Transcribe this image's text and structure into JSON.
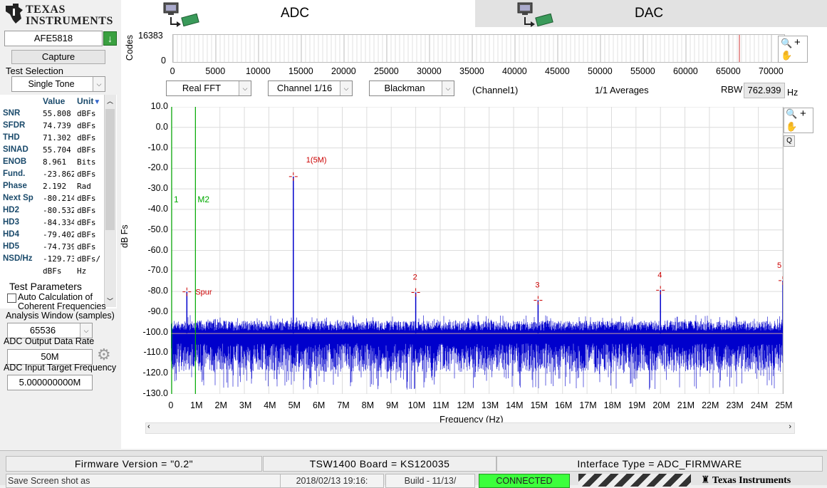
{
  "brand": {
    "name": "Texas Instruments",
    "logo_line1": "TEXAS",
    "logo_line2": "INSTRUMENTS"
  },
  "tabs": [
    {
      "label": "ADC",
      "active": true
    },
    {
      "label": "DAC",
      "active": false
    }
  ],
  "left": {
    "device": "AFE5818",
    "capture_label": "Capture",
    "test_selection_label": "Test Selection",
    "test_selection_value": "Single Tone",
    "metrics_headers": {
      "name": "",
      "value": "Value",
      "unit": "Unit"
    },
    "metrics": [
      {
        "name": "SNR",
        "value": "55.808",
        "unit": "dBFs"
      },
      {
        "name": "SFDR",
        "value": "74.739",
        "unit": "dBFs"
      },
      {
        "name": "THD",
        "value": "71.302",
        "unit": "dBFs"
      },
      {
        "name": "SINAD",
        "value": "55.704",
        "unit": "dBFs"
      },
      {
        "name": "ENOB",
        "value": "8.961",
        "unit": "Bits"
      },
      {
        "name": "Fund.",
        "value": "-23.862",
        "unit": "dBFs"
      },
      {
        "name": "Phase",
        "value": "2.192",
        "unit": "Rad"
      },
      {
        "name": "Next Sp",
        "value": "-80.214",
        "unit": "dBFs"
      },
      {
        "name": "HD2",
        "value": "-80.532",
        "unit": "dBFs"
      },
      {
        "name": "HD3",
        "value": "-84.334",
        "unit": "dBFs"
      },
      {
        "name": "HD4",
        "value": "-79.402",
        "unit": "dBFs"
      },
      {
        "name": "HD5",
        "value": "-74.739",
        "unit": "dBFs"
      },
      {
        "name": "NSD/Hz",
        "value": "-129.73",
        "unit": "dBFs/"
      },
      {
        "name": "",
        "value": "dBFs",
        "unit": "Hz"
      }
    ],
    "test_params_title": "Test Parameters",
    "auto_calc_line1": "Auto Calculation of",
    "auto_calc_line2": "Coherent Frequencies",
    "auto_calc_checked": false,
    "analysis_window_label": "Analysis Window (samples)",
    "analysis_window_value": "65536",
    "output_rate_label": "ADC Output Data Rate",
    "output_rate_value": "50M",
    "input_freq_label": "ADC Input Target Frequency",
    "input_freq_value": "5.000000000M"
  },
  "codes_plot": {
    "ylabel": "Codes",
    "y_ticks": [
      "16383",
      "0"
    ],
    "x_ticks": [
      "0",
      "5000",
      "10000",
      "15000",
      "20000",
      "25000",
      "30000",
      "35000",
      "40000",
      "45000",
      "50000",
      "55000",
      "60000",
      "65000",
      "70000"
    ]
  },
  "controls": {
    "fft_type": "Real FFT",
    "channel": "Channel 1/16",
    "window": "Blackman",
    "channel_label": "(Channel1)",
    "averages": "1/1  Averages",
    "rbw_label": "RBW",
    "rbw_value": "762.939",
    "rbw_unit": "Hz"
  },
  "chart_data": {
    "type": "line",
    "title": "",
    "xlabel": "Frequency (Hz)",
    "ylabel": "dB Fs",
    "xlim": [
      0,
      25000000
    ],
    "ylim": [
      -130,
      10
    ],
    "x_ticks": [
      "0",
      "1M",
      "2M",
      "3M",
      "4M",
      "5M",
      "6M",
      "7M",
      "8M",
      "9M",
      "10M",
      "11M",
      "12M",
      "13M",
      "14M",
      "15M",
      "16M",
      "17M",
      "18M",
      "19M",
      "20M",
      "21M",
      "22M",
      "23M",
      "24M",
      "25M"
    ],
    "y_ticks": [
      "10.0",
      "0.0",
      "-10.0",
      "-20.0",
      "-30.0",
      "-40.0",
      "-50.0",
      "-60.0",
      "-70.0",
      "-80.0",
      "-90.0",
      "-100.0",
      "-110.0",
      "-120.0",
      "-130.0"
    ],
    "grid": true,
    "noise_floor_db": -100.5,
    "series_color": "#0000cc",
    "markers": [
      {
        "label": "1(5M)",
        "x": 5000000,
        "y": -24
      },
      {
        "label": "2",
        "x": 10000000,
        "y": -80.5
      },
      {
        "label": "3",
        "x": 15000000,
        "y": -84.3
      },
      {
        "label": "4",
        "x": 20000000,
        "y": -79.4
      },
      {
        "label": "5",
        "x": 25000000,
        "y": -74.7
      },
      {
        "label": "Spur",
        "x": 650000,
        "y": -80.2
      }
    ],
    "cursors": [
      {
        "label": "1",
        "x": 0
      },
      {
        "label": "M2",
        "x": 1000000
      }
    ],
    "marker_color": "#cc0000",
    "cursor_color": "#00aa00"
  },
  "status": {
    "firmware": "Firmware Version = \"0.2\"",
    "board": "TSW1400 Board = KS120035",
    "interface": "Interface Type = ADC_FIRMWARE",
    "save_label": "Save Screen shot as",
    "datetime": "2018/02/13 19:16:",
    "build": "Build  - 11/13/",
    "connection": "CONNECTED"
  }
}
